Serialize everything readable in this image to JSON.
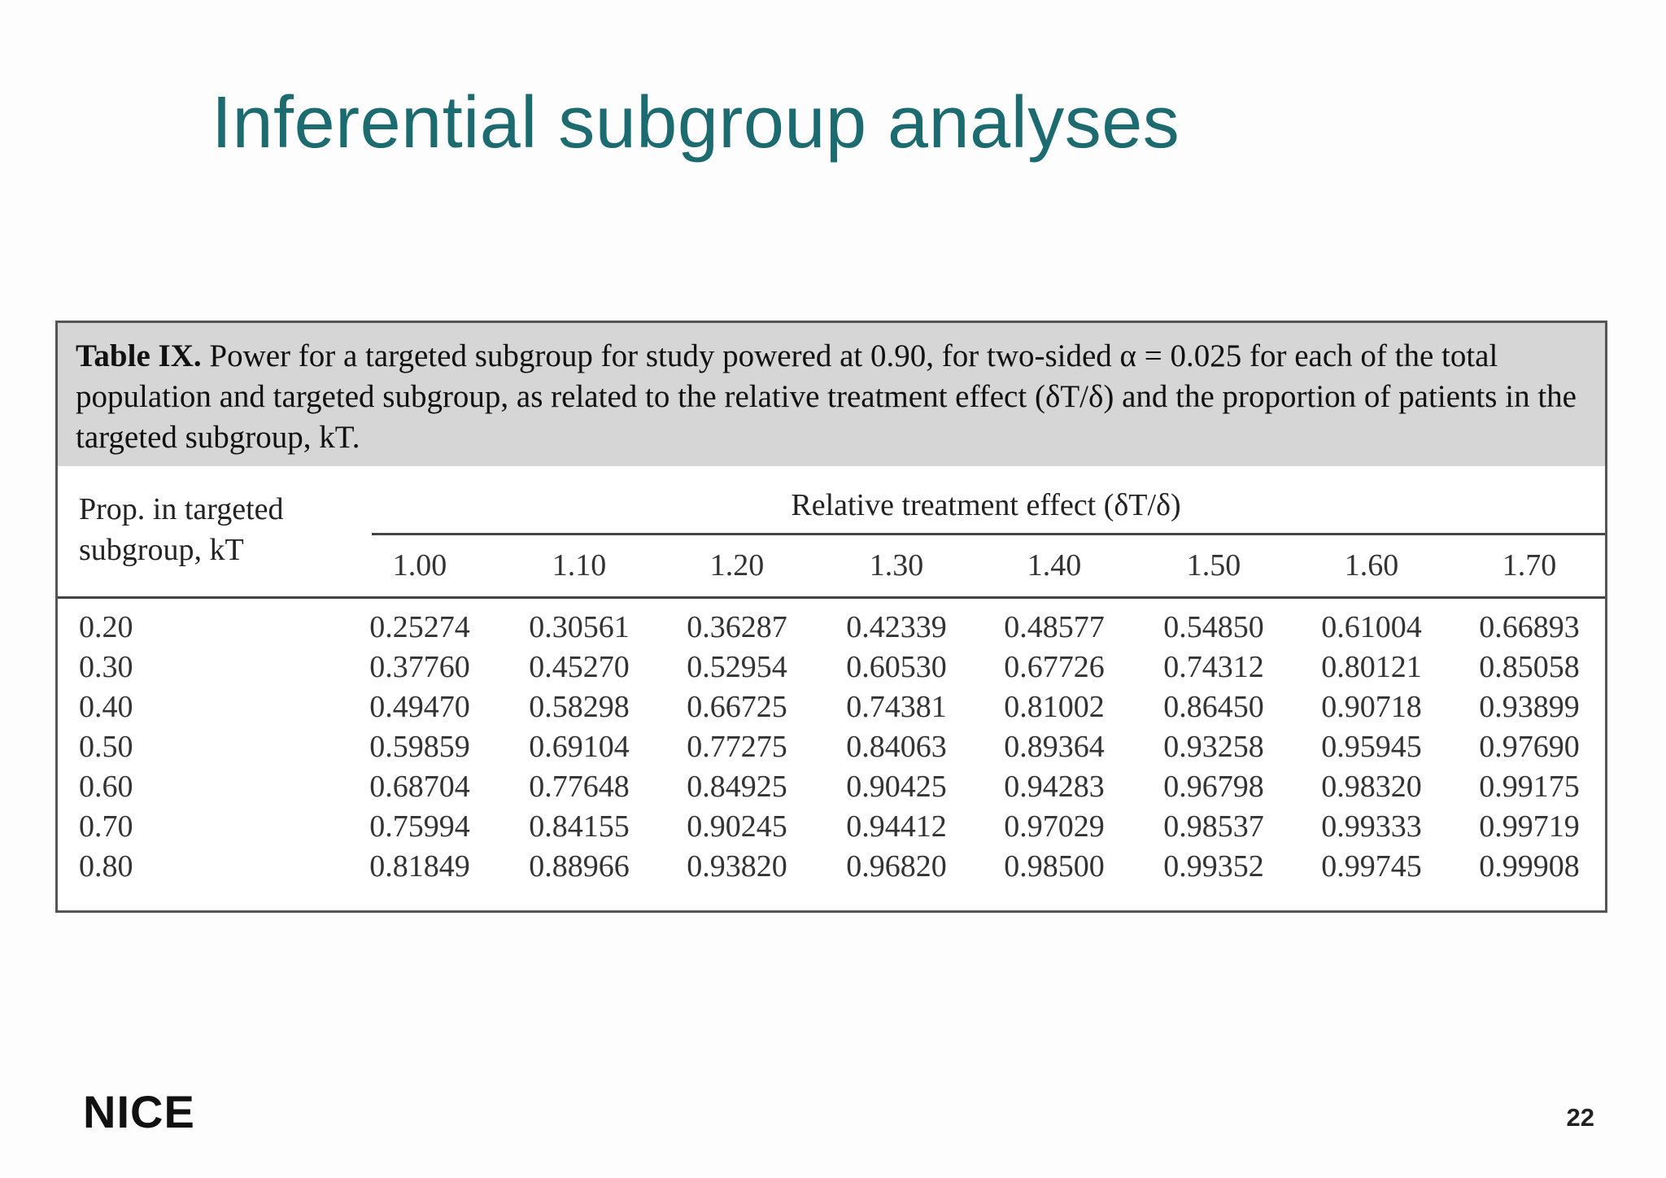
{
  "slide": {
    "title": "Inferential subgroup analyses",
    "logo": "NICE",
    "page_number": "22"
  },
  "table": {
    "caption_number": "Table IX.",
    "caption_text": "Power for a targeted subgroup for study powered at 0.90, for two-sided α = 0.025 for each of the total population and targeted subgroup, as related to the relative treatment effect (δT/δ) and the proportion of patients in the targeted subgroup, kT.",
    "row_header": "Prop. in targeted subgroup, kT",
    "column_group_header": "Relative treatment effect (δT/δ)",
    "columns": [
      "1.00",
      "1.10",
      "1.20",
      "1.30",
      "1.40",
      "1.50",
      "1.60",
      "1.70"
    ],
    "rows": [
      {
        "label": "0.20",
        "values": [
          "0.25274",
          "0.30561",
          "0.36287",
          "0.42339",
          "0.48577",
          "0.54850",
          "0.61004",
          "0.66893"
        ]
      },
      {
        "label": "0.30",
        "values": [
          "0.37760",
          "0.45270",
          "0.52954",
          "0.60530",
          "0.67726",
          "0.74312",
          "0.80121",
          "0.85058"
        ]
      },
      {
        "label": "0.40",
        "values": [
          "0.49470",
          "0.58298",
          "0.66725",
          "0.74381",
          "0.81002",
          "0.86450",
          "0.90718",
          "0.93899"
        ]
      },
      {
        "label": "0.50",
        "values": [
          "0.59859",
          "0.69104",
          "0.77275",
          "0.84063",
          "0.89364",
          "0.93258",
          "0.95945",
          "0.97690"
        ]
      },
      {
        "label": "0.60",
        "values": [
          "0.68704",
          "0.77648",
          "0.84925",
          "0.90425",
          "0.94283",
          "0.96798",
          "0.98320",
          "0.99175"
        ]
      },
      {
        "label": "0.70",
        "values": [
          "0.75994",
          "0.84155",
          "0.90245",
          "0.94412",
          "0.97029",
          "0.98537",
          "0.99333",
          "0.99719"
        ]
      },
      {
        "label": "0.80",
        "values": [
          "0.81849",
          "0.88966",
          "0.93820",
          "0.96820",
          "0.98500",
          "0.99352",
          "0.99745",
          "0.99908"
        ]
      }
    ]
  }
}
